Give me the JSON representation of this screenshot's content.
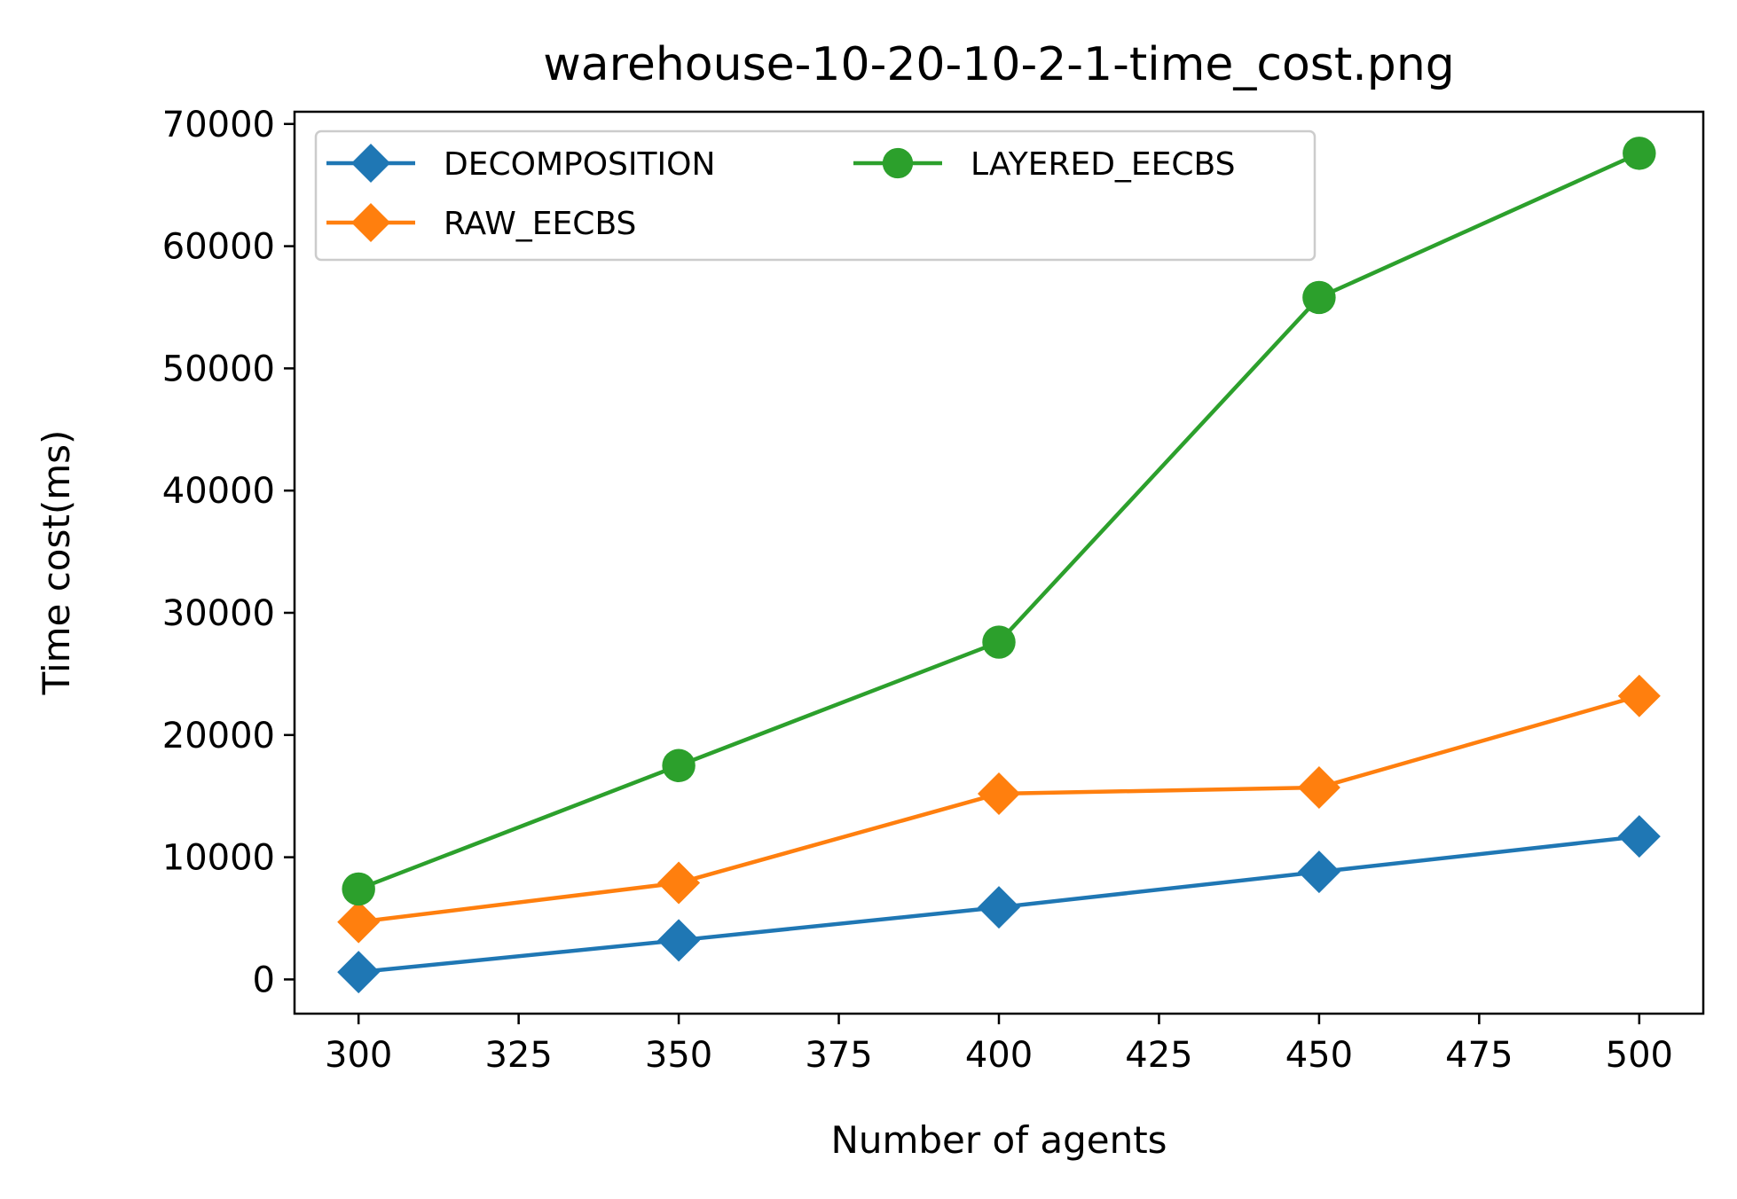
{
  "chart_data": {
    "type": "line",
    "title": "warehouse-10-20-10-2-1-time_cost.png",
    "xlabel": "Number of agents",
    "ylabel": "Time cost(ms)",
    "xlim": [
      290,
      510
    ],
    "ylim": [
      -2800,
      71000
    ],
    "x_ticks": [
      300,
      325,
      350,
      375,
      400,
      425,
      450,
      475,
      500
    ],
    "y_ticks": [
      0,
      10000,
      20000,
      30000,
      40000,
      50000,
      60000,
      70000
    ],
    "x": [
      300,
      350,
      400,
      450,
      500
    ],
    "grid": false,
    "legend_position": "top-left",
    "legend_columns": 2,
    "series": [
      {
        "name": "DECOMPOSITION",
        "color": "#1f77b4",
        "marker": "diamond",
        "values": [
          600,
          3200,
          5900,
          8800,
          11700
        ]
      },
      {
        "name": "RAW_EECBS",
        "color": "#ff7f0e",
        "marker": "diamond",
        "values": [
          4700,
          7900,
          15200,
          15700,
          23200
        ]
      },
      {
        "name": "LAYERED_EECBS",
        "color": "#2ca02c",
        "marker": "circle",
        "values": [
          7400,
          17500,
          27600,
          55800,
          67600
        ]
      }
    ]
  }
}
